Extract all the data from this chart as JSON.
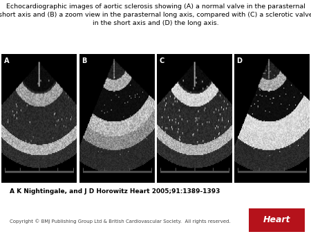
{
  "title_line1": "Echocardiographic images of aortic sclerosis showing (A) a normal valve in the parasternal",
  "title_line2": "short axis and (B) a zoom view in the parasternal long axis, compared with (C) a sclerotic valve",
  "title_line3": "in the short axis and (D) the long axis.",
  "title_fontsize": 6.8,
  "author_line": "A K Nightingale, and J D Horowitz Heart 2005;91:1389-1393",
  "author_fontsize": 6.5,
  "copyright_line": "Copyright © BMJ Publishing Group Ltd & British Cardiovascular Society.  All rights reserved.",
  "copyright_fontsize": 5.0,
  "journal_name": "Heart",
  "journal_bg": "#b5121b",
  "journal_fontsize": 9,
  "bg_color": "#ffffff",
  "panel_labels": [
    "A",
    "B",
    "C",
    "D"
  ],
  "panel_label_color": "#ffffff",
  "panel_label_fontsize": 7,
  "image_area_bg": "#000000",
  "num_panels": 4,
  "fig_width": 4.5,
  "fig_height": 3.38,
  "dpi": 100
}
